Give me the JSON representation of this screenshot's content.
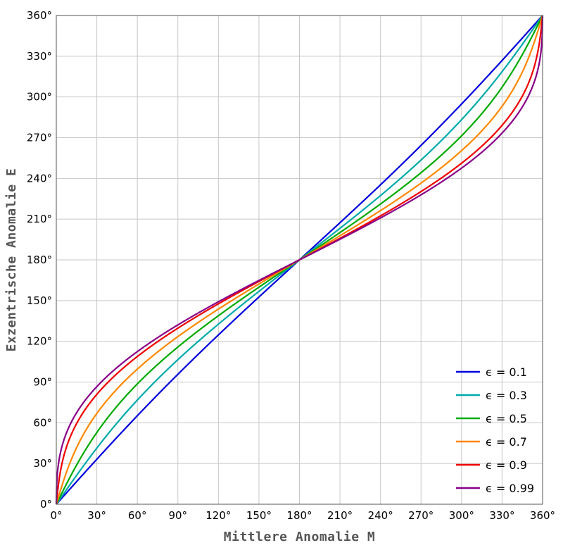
{
  "chart_data": {
    "type": "line",
    "title": "",
    "xlabel": "Mittlere Anomalie M",
    "ylabel": "Exzentrische Anomalie E",
    "xlim": [
      0,
      360
    ],
    "ylim": [
      0,
      360
    ],
    "x_ticks": [
      0,
      30,
      60,
      90,
      120,
      150,
      180,
      210,
      240,
      270,
      300,
      330,
      360
    ],
    "y_ticks": [
      0,
      30,
      60,
      90,
      120,
      150,
      180,
      210,
      240,
      270,
      300,
      330,
      360
    ],
    "x_tick_labels": [
      "0°",
      "30°",
      "60°",
      "90°",
      "120°",
      "150°",
      "180°",
      "210°",
      "240°",
      "270°",
      "300°",
      "330°",
      "360°"
    ],
    "y_tick_labels": [
      "0°",
      "30°",
      "60°",
      "90°",
      "120°",
      "150°",
      "180°",
      "210°",
      "240°",
      "270°",
      "300°",
      "330°",
      "360°"
    ],
    "grid": true,
    "legend_position": "bottom-right",
    "series": [
      {
        "name": "ϵ = 0.1",
        "eccentricity": 0.1,
        "color": "#0000dd",
        "x": [
          0,
          30,
          60,
          90,
          120,
          150,
          180,
          210,
          240,
          270,
          300,
          330,
          360
        ],
        "y": [
          0,
          33.1,
          65.4,
          95.7,
          125.1,
          153.2,
          180,
          206.8,
          234.9,
          264.3,
          294.6,
          326.9,
          360
        ]
      },
      {
        "name": "ϵ = 0.3",
        "eccentricity": 0.3,
        "color": "#00aaaa",
        "x": [
          0,
          30,
          60,
          90,
          120,
          150,
          180,
          210,
          240,
          270,
          300,
          330,
          360
        ],
        "y": [
          0,
          40.5,
          77.7,
          106.4,
          131.9,
          156.5,
          180,
          203.5,
          228.1,
          253.6,
          282.3,
          319.5,
          360
        ]
      },
      {
        "name": "ϵ = 0.5",
        "eccentricity": 0.5,
        "color": "#00aa00",
        "x": [
          0,
          30,
          60,
          90,
          120,
          150,
          180,
          210,
          240,
          270,
          300,
          330,
          360
        ],
        "y": [
          0,
          52.3,
          89.3,
          115.1,
          137.2,
          158.7,
          180,
          201.3,
          222.8,
          244.9,
          270.7,
          307.7,
          360
        ]
      },
      {
        "name": "ϵ = 0.7",
        "eccentricity": 0.7,
        "color": "#ff8800",
        "x": [
          0,
          30,
          60,
          90,
          120,
          150,
          180,
          210,
          240,
          270,
          300,
          330,
          360
        ],
        "y": [
          0,
          67.6,
          99.4,
          122,
          141.2,
          160.5,
          180,
          199.5,
          218.8,
          238,
          260.6,
          292.4,
          360
        ]
      },
      {
        "name": "ϵ = 0.9",
        "eccentricity": 0.9,
        "color": "#ee0000",
        "x": [
          0,
          30,
          60,
          90,
          120,
          150,
          180,
          210,
          240,
          270,
          300,
          330,
          360
        ],
        "y": [
          0,
          80.6,
          107.9,
          127.6,
          144.8,
          162,
          180,
          198,
          215.2,
          232.4,
          252.1,
          279.4,
          360
        ]
      },
      {
        "name": "ϵ = 0.99",
        "eccentricity": 0.99,
        "color": "#880088",
        "x": [
          0,
          30,
          60,
          90,
          120,
          150,
          180,
          210,
          240,
          270,
          300,
          330,
          360
        ],
        "y": [
          0,
          85.6,
          111.3,
          129.8,
          146.2,
          162.6,
          180,
          197.4,
          213.8,
          230.2,
          248.7,
          274.4,
          360
        ]
      }
    ]
  }
}
